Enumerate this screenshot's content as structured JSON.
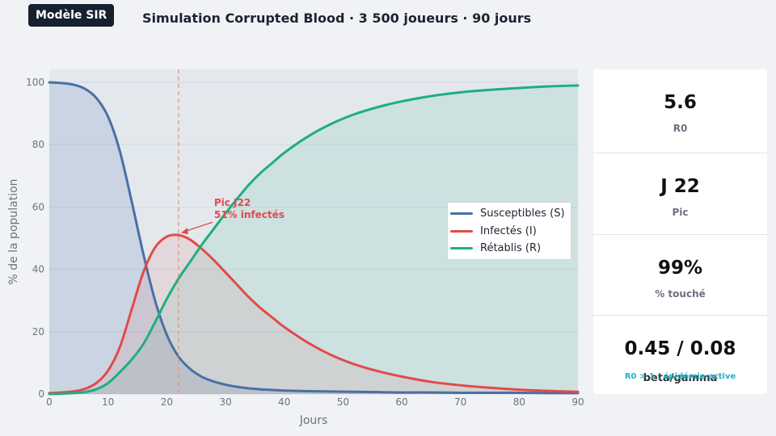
{
  "badge": "Modèle SIR",
  "title": "Simulation Corrupted Blood · 3 500 joueurs · 90 jours",
  "chart_data": {
    "type": "line",
    "xlabel": "Jours",
    "ylabel": "% de la population",
    "xlim": [
      0,
      90
    ],
    "ylim": [
      0,
      100
    ],
    "xticks": [
      0,
      10,
      20,
      30,
      40,
      50,
      60,
      70,
      80,
      90
    ],
    "yticks": [
      0,
      20,
      40,
      60,
      80,
      100
    ],
    "grid": true,
    "area_fill": true,
    "legend_position": "center-right",
    "x": [
      0,
      2,
      4,
      6,
      8,
      10,
      12,
      14,
      16,
      18,
      20,
      22,
      24,
      26,
      28,
      30,
      32,
      34,
      36,
      38,
      40,
      44,
      48,
      52,
      56,
      60,
      65,
      70,
      75,
      80,
      85,
      90
    ],
    "series": [
      {
        "name": "Susceptibles (S)",
        "color": "#4a6fa5",
        "values": [
          100,
          99.8,
          99.3,
          98,
          95,
          89,
          78,
          62,
          45,
          30,
          19,
          12,
          8,
          5.5,
          4,
          3,
          2.3,
          1.8,
          1.5,
          1.3,
          1.1,
          0.9,
          0.8,
          0.7,
          0.6,
          0.5,
          0.5,
          0.4,
          0.4,
          0.4,
          0.3,
          0.3
        ]
      },
      {
        "name": "Infectés (I)",
        "color": "#e24a4a",
        "values": [
          0.3,
          0.5,
          0.8,
          1.6,
          3.5,
          7.5,
          15,
          27,
          39,
          47,
          50.5,
          51,
          49.5,
          46.5,
          43,
          39,
          35,
          31,
          27.5,
          24.5,
          21.5,
          16.5,
          12.5,
          9.5,
          7.3,
          5.6,
          3.9,
          2.8,
          2,
          1.4,
          1,
          0.7
        ]
      },
      {
        "name": "Rétablis (R)",
        "color": "#1dae7f",
        "values": [
          0,
          0.1,
          0.3,
          0.6,
          1.5,
          3.5,
          7,
          11,
          16,
          23,
          30.5,
          37,
          42.5,
          48,
          53,
          58,
          62.7,
          67.2,
          71,
          74.2,
          77.4,
          82.6,
          86.7,
          89.8,
          92.1,
          93.9,
          95.6,
          96.8,
          97.6,
          98.2,
          98.7,
          99
        ]
      }
    ],
    "peak_marker": {
      "x": 22,
      "y": 51.5,
      "lines": [
        "Pic J22",
        "51% infectés"
      ]
    }
  },
  "stats": [
    {
      "value": "5.6",
      "label": "R0"
    },
    {
      "value": "J 22",
      "label": "Pic"
    },
    {
      "value": "99%",
      "label": "% touché"
    },
    {
      "value": "0.45 / 0.08",
      "label": "beta/gamma",
      "note": "R0 > 1 : épidémie active"
    }
  ],
  "colors": {
    "background": "#f1f2f5",
    "plot_area": "#e3e8ed",
    "grid": "#c9d5e3",
    "peak_line": "#e5907a",
    "badge": "#16202e"
  }
}
